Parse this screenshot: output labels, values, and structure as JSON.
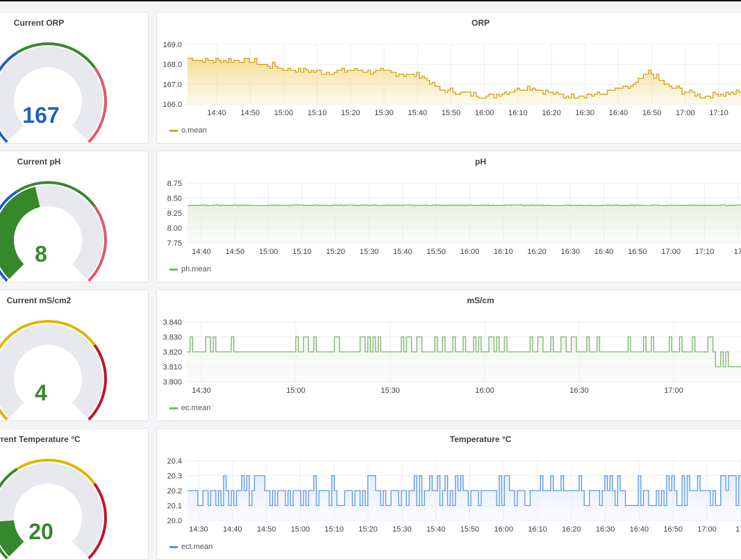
{
  "gauges": [
    {
      "title": "Current ORP",
      "value": "167",
      "color": "#1f60c4",
      "bands": [
        "#1f60c4",
        "#37872d",
        "#e05a69"
      ]
    },
    {
      "title": "Current pH",
      "value": "8",
      "color": "#37872d",
      "bands": [
        "#1f60c4",
        "#37872d",
        "#e05a69"
      ]
    },
    {
      "title": "Current mS/cm2",
      "value": "4",
      "color": "#37872d",
      "bands": [
        "#e0b400",
        "#e0b400",
        "#c4162a"
      ]
    },
    {
      "title": "rrent Temperature °C",
      "value": "20",
      "color": "#37872d",
      "bands": [
        "#37872d",
        "#e0b400",
        "#c4162a"
      ]
    }
  ],
  "charts": [
    {
      "title": "ORP",
      "legend": "o.mean",
      "color": "#d4a017",
      "fill": "#f3dc8e",
      "yticks": [
        "169.0",
        "168.0",
        "167.0",
        "166.0"
      ],
      "xticks": [
        "14:40",
        "14:50",
        "15:00",
        "15:10",
        "15:20",
        "15:30",
        "15:40",
        "15:50",
        "16:00",
        "16:10",
        "16:20",
        "16:30",
        "16:40",
        "16:50",
        "17:00",
        "17:10"
      ],
      "chart_data": {
        "type": "area",
        "ylim": [
          166.0,
          169.0
        ],
        "x": [
          "14:33",
          "14:40",
          "14:50",
          "15:00",
          "15:10",
          "15:20",
          "15:30",
          "15:40",
          "15:45",
          "15:50",
          "16:00",
          "16:10",
          "16:20",
          "16:30",
          "16:40",
          "16:45",
          "16:50",
          "17:00",
          "17:10",
          "17:15"
        ],
        "values": [
          168.3,
          168.2,
          168.2,
          167.8,
          167.6,
          167.7,
          167.6,
          167.4,
          166.7,
          166.6,
          166.4,
          166.9,
          166.4,
          166.5,
          166.9,
          167.6,
          166.9,
          166.4,
          166.6,
          166.4
        ]
      }
    },
    {
      "title": "pH",
      "legend": "ph.mean",
      "color": "#7eb26d",
      "fill": "#e6efe2",
      "yticks": [
        "8.75",
        "8.50",
        "8.25",
        "8.00",
        "7.75"
      ],
      "xticks": [
        "14:40",
        "14:50",
        "15:00",
        "15:10",
        "15:20",
        "15:30",
        "15:40",
        "15:50",
        "16:00",
        "16:10",
        "16:20",
        "16:30",
        "16:40",
        "16:50",
        "17:00",
        "17:10",
        "17"
      ],
      "chart_data": {
        "type": "area",
        "ylim": [
          7.75,
          8.75
        ],
        "x": [
          "14:33",
          "17:15"
        ],
        "values": [
          8.38,
          8.38
        ]
      }
    },
    {
      "title": "mS/cm",
      "legend": "ec.mean",
      "color": "#7eb26d",
      "fill": "#eef4eb",
      "yticks": [
        "3.840",
        "3.830",
        "3.820",
        "3.810",
        "3.800"
      ],
      "xticks": [
        "14:30",
        "15:00",
        "15:30",
        "16:00",
        "16:30",
        "17:00"
      ],
      "chart_data": {
        "type": "area",
        "ylim": [
          3.8,
          3.84
        ],
        "x": [
          "14:25",
          "14:45",
          "14:50",
          "15:00",
          "15:30",
          "16:00",
          "16:30",
          "17:00",
          "17:10"
        ],
        "values": [
          3.82,
          3.82,
          3.83,
          3.82,
          3.83,
          3.82,
          3.83,
          3.82,
          3.81
        ]
      }
    },
    {
      "title": "Temperature °C",
      "legend": "ect.mean",
      "color": "#5794f2",
      "fill": "#e3ecfb",
      "yticks": [
        "20.4",
        "20.3",
        "20.2",
        "20.1",
        "20.0"
      ],
      "xticks": [
        "14:30",
        "14:40",
        "14:50",
        "15:00",
        "15:10",
        "15:20",
        "15:30",
        "15:40",
        "15:50",
        "16:00",
        "16:10",
        "16:20",
        "16:30",
        "16:40",
        "16:50",
        "17:00",
        "17:"
      ],
      "chart_data": {
        "type": "area",
        "ylim": [
          20.0,
          20.4
        ],
        "x": [
          "14:25",
          "14:45",
          "14:50",
          "15:00",
          "15:30",
          "16:00",
          "16:30",
          "17:00",
          "17:10"
        ],
        "values": [
          20.15,
          20.22,
          20.18,
          20.18,
          20.18,
          20.19,
          20.18,
          20.2,
          20.29
        ]
      }
    }
  ]
}
